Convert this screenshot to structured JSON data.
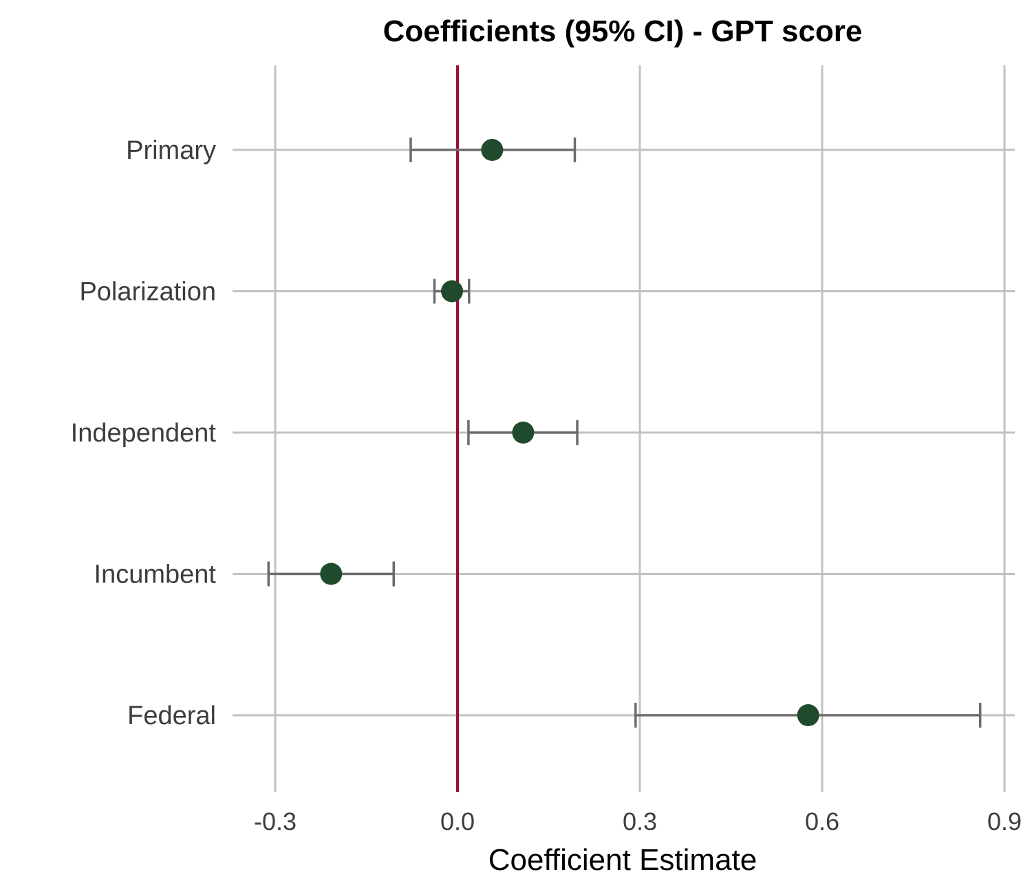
{
  "chart_data": {
    "type": "scatter",
    "title": "Coefficients (95% CI) - GPT score",
    "xlabel": "Coefficient Estimate",
    "ylabel": "",
    "xlim": [
      -0.3,
      0.9
    ],
    "xticks": [
      "-0.3",
      "0.0",
      "0.3",
      "0.6",
      "0.9"
    ],
    "grid": true,
    "reference_line": {
      "x": 0.0,
      "color": "#9b1030"
    },
    "point_color": "#1f4a2b",
    "errorbar_color": "#6b6b6b",
    "categories": [
      "Primary",
      "Polarization",
      "Independent",
      "Incumbent",
      "Federal"
    ],
    "estimates": [
      0.057,
      -0.009,
      0.108,
      -0.208,
      0.577
    ],
    "ci_low": [
      -0.077,
      -0.038,
      0.018,
      -0.311,
      0.293
    ],
    "ci_high": [
      0.193,
      0.019,
      0.197,
      -0.105,
      0.86
    ]
  }
}
